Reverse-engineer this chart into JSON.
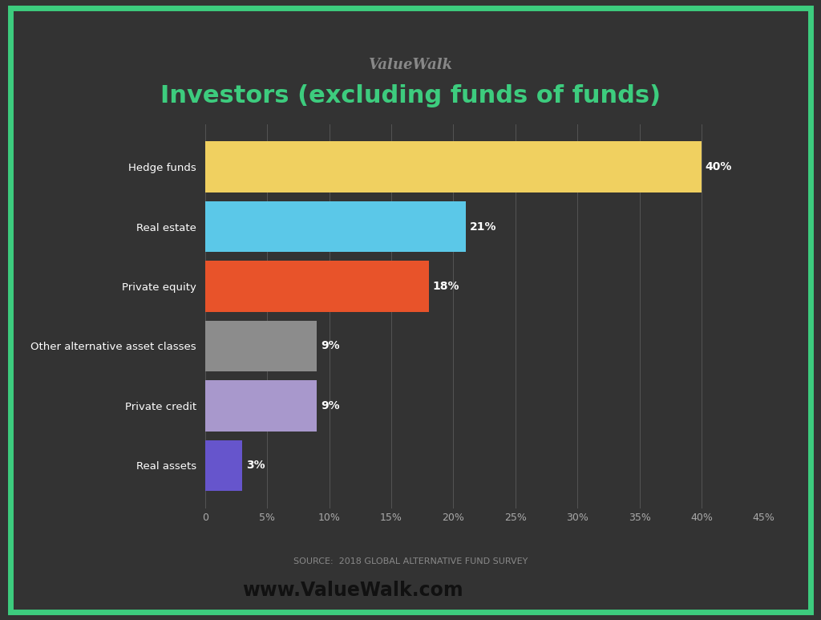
{
  "title_brand": "ValueWalk",
  "title_main": "Investors (excluding funds of funds)",
  "categories": [
    "Real assets",
    "Private credit",
    "Other alternative asset classes",
    "Private equity",
    "Real estate",
    "Hedge funds"
  ],
  "values": [
    3,
    9,
    9,
    18,
    21,
    40
  ],
  "bar_colors": [
    "#6655cc",
    "#a898cc",
    "#8c8c8c",
    "#e8532a",
    "#5bc8e8",
    "#f0d060"
  ],
  "value_labels": [
    "3%",
    "9%",
    "9%",
    "18%",
    "21%",
    "40%"
  ],
  "background_color": "#333333",
  "border_color": "#3dcc7e",
  "title_brand_color": "#888888",
  "title_main_color": "#3dcc7e",
  "bar_label_color": "#ffffff",
  "tick_label_color": "#aaaaaa",
  "grid_color": "#555555",
  "source_text": "SOURCE:  2018 GLOBAL ALTERNATIVE FUND SURVEY",
  "source_color": "#888888",
  "website_text": "www.ValueWalk.com",
  "website_color": "#111111",
  "xlim": [
    0,
    45
  ],
  "xticks": [
    0,
    5,
    10,
    15,
    20,
    25,
    30,
    35,
    40,
    45
  ],
  "xtick_labels": [
    "0",
    "5%",
    "10%",
    "15%",
    "20%",
    "25%",
    "30%",
    "35%",
    "40%",
    "45%"
  ]
}
